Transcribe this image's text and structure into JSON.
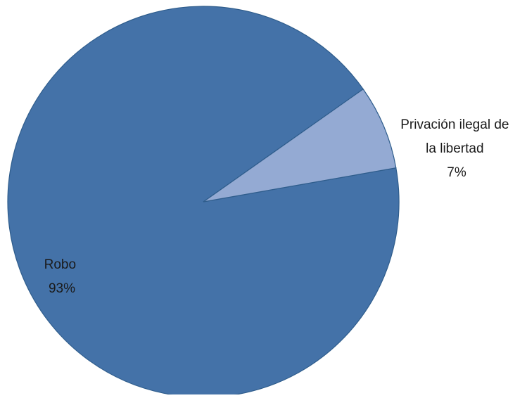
{
  "chart_data": {
    "type": "pie",
    "title": "",
    "slices": [
      {
        "category": "Robo",
        "percent_label": "93%",
        "value": 93,
        "color": "#4472A8"
      },
      {
        "category_lines": [
          "Privación ilegal de",
          "la libertad"
        ],
        "percent_label": "7%",
        "value": 7,
        "color": "#94AAD3"
      }
    ],
    "border_color": "#2F5D8C",
    "legend": "none",
    "data_labels": "category and percentage"
  }
}
